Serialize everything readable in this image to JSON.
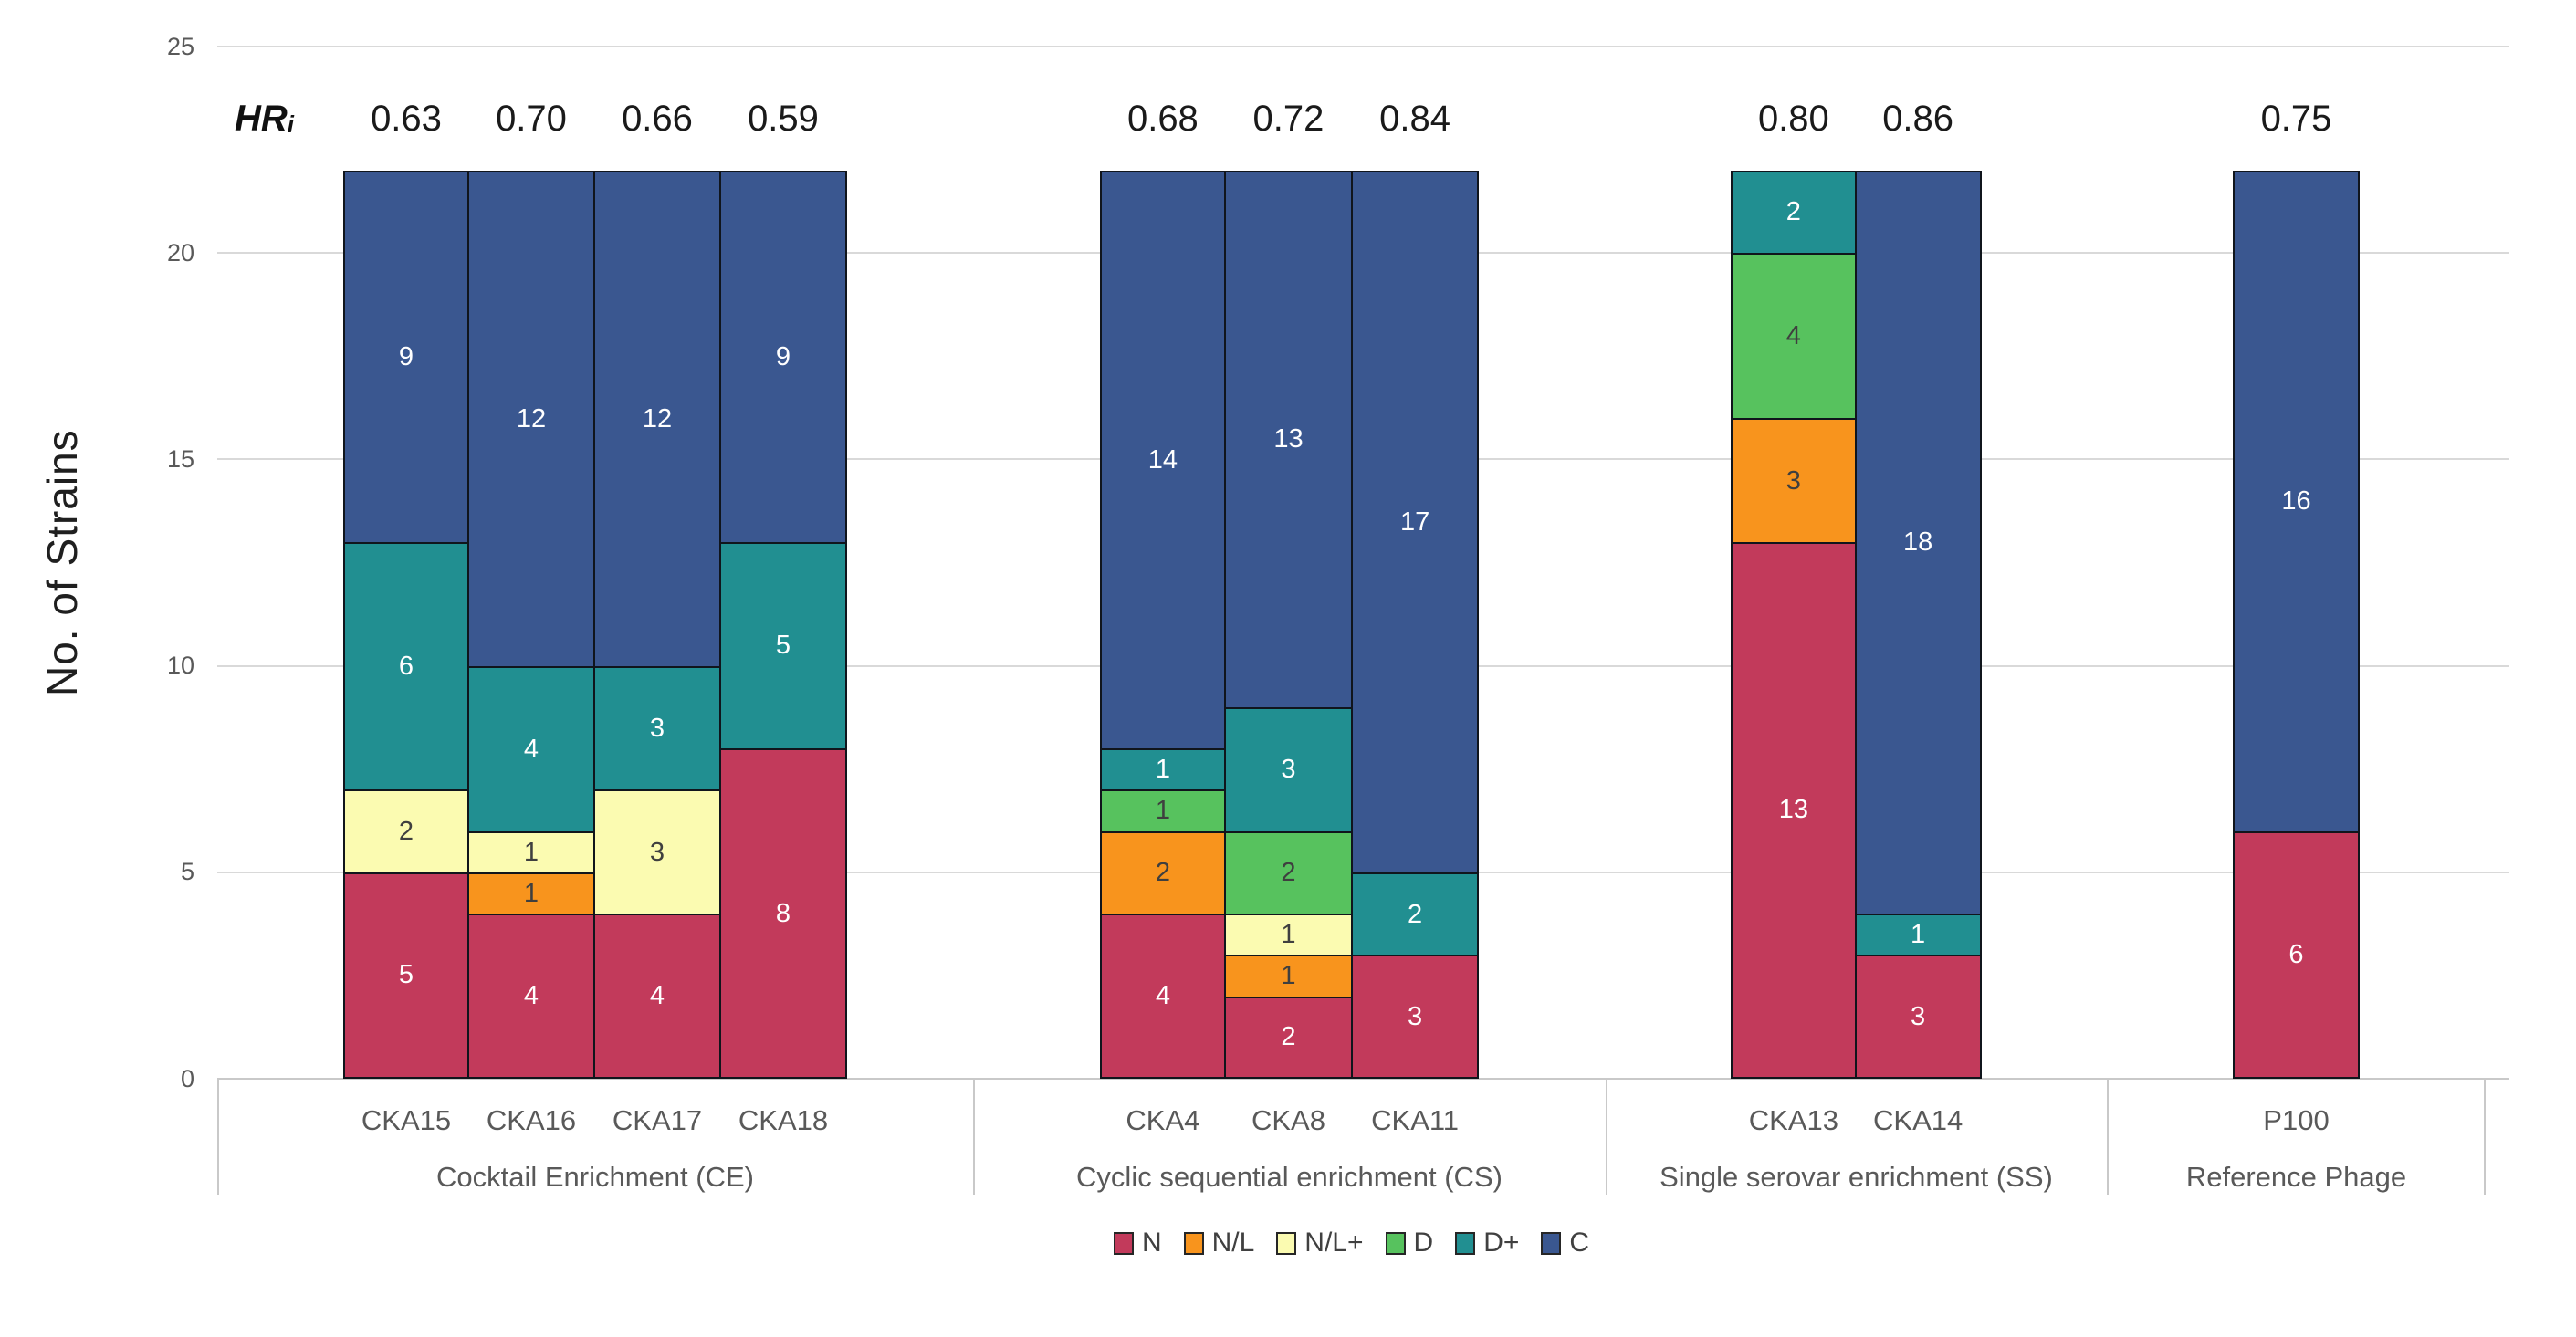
{
  "chart_data": {
    "type": "bar",
    "stacked": true,
    "title": "",
    "ylabel": "No. of Strains",
    "xlabel": "",
    "ylim": [
      0,
      25
    ],
    "yticks": [
      0,
      5,
      10,
      15,
      20,
      25
    ],
    "grid": true,
    "legend_position": "bottom",
    "hr_row": {
      "label": "HR",
      "subscript": "i"
    },
    "legend": [
      {
        "name": "N",
        "color": "#c23a5b",
        "text_color": "#ffffff"
      },
      {
        "name": "N/L",
        "color": "#f8941d",
        "text_color": "#3f3f3f"
      },
      {
        "name": "N/L+",
        "color": "#fbfbb1",
        "text_color": "#3f3f3f"
      },
      {
        "name": "D",
        "color": "#57c25e",
        "text_color": "#3f3f3f"
      },
      {
        "name": "D+",
        "color": "#218f91",
        "text_color": "#ffffff"
      },
      {
        "name": "C",
        "color": "#3a5790",
        "text_color": "#ffffff"
      }
    ],
    "groups": [
      {
        "label": "Cocktail Enrichment (CE)",
        "bars": [
          {
            "label": "CKA15",
            "hr": "0.63",
            "segments": [
              [
                "N",
                5
              ],
              [
                "N/L+",
                2
              ],
              [
                "D+",
                6
              ],
              [
                "C",
                9
              ]
            ]
          },
          {
            "label": "CKA16",
            "hr": "0.70",
            "segments": [
              [
                "N",
                4
              ],
              [
                "N/L",
                1
              ],
              [
                "N/L+",
                1
              ],
              [
                "D+",
                4
              ],
              [
                "C",
                12
              ]
            ]
          },
          {
            "label": "CKA17",
            "hr": "0.66",
            "segments": [
              [
                "N",
                4
              ],
              [
                "N/L+",
                3
              ],
              [
                "D+",
                3
              ],
              [
                "C",
                12
              ]
            ]
          },
          {
            "label": "CKA18",
            "hr": "0.59",
            "segments": [
              [
                "N",
                8
              ],
              [
                "D+",
                5
              ],
              [
                "C",
                9
              ]
            ]
          }
        ]
      },
      {
        "label": "Cyclic sequential enrichment (CS)",
        "bars": [
          {
            "label": "CKA4",
            "hr": "0.68",
            "segments": [
              [
                "N",
                4
              ],
              [
                "N/L",
                2
              ],
              [
                "D",
                1
              ],
              [
                "D+",
                1
              ],
              [
                "C",
                14
              ]
            ]
          },
          {
            "label": "CKA8",
            "hr": "0.72",
            "segments": [
              [
                "N",
                2
              ],
              [
                "N/L",
                1
              ],
              [
                "N/L+",
                1
              ],
              [
                "D",
                2
              ],
              [
                "D+",
                3
              ],
              [
                "C",
                13
              ]
            ]
          },
          {
            "label": "CKA11",
            "hr": "0.84",
            "segments": [
              [
                "N",
                3
              ],
              [
                "D+",
                2
              ],
              [
                "C",
                17
              ]
            ]
          }
        ]
      },
      {
        "label": "Single serovar enrichment (SS)",
        "bars": [
          {
            "label": "CKA13",
            "hr": "0.80",
            "segments": [
              [
                "N",
                13
              ],
              [
                "N/L",
                3
              ],
              [
                "D",
                4
              ],
              [
                "D+",
                2
              ]
            ]
          },
          {
            "label": "CKA14",
            "hr": "0.86",
            "segments": [
              [
                "N",
                3
              ],
              [
                "D+",
                1
              ],
              [
                "C",
                18
              ]
            ]
          }
        ]
      },
      {
        "label": "Reference Phage",
        "bars": [
          {
            "label": "P100",
            "hr": "0.75",
            "segments": [
              [
                "N",
                6
              ],
              [
                "C",
                16
              ]
            ]
          }
        ]
      }
    ]
  }
}
